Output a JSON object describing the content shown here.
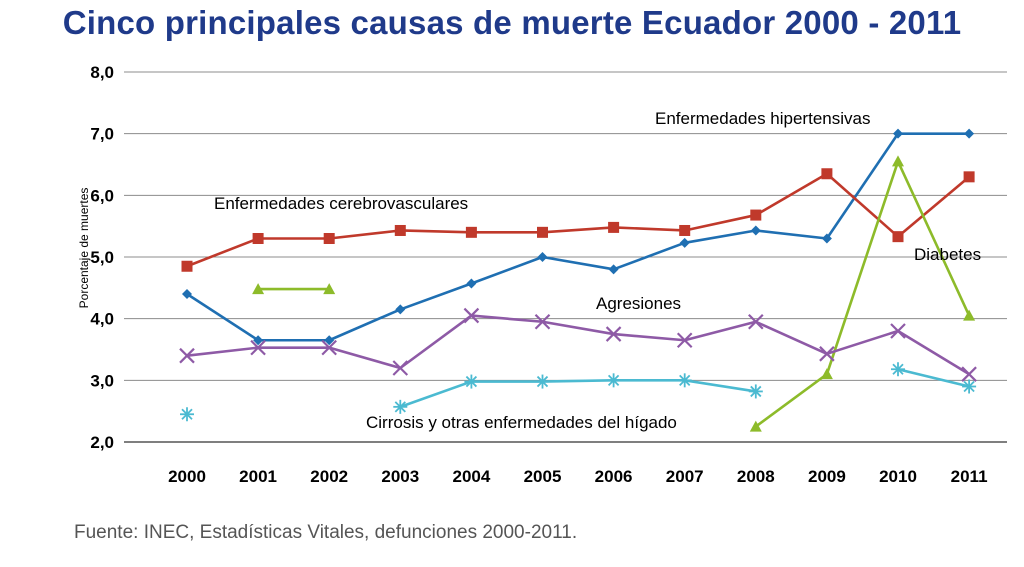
{
  "title": "Cinco principales causas de muerte Ecuador 2000 - 2011",
  "source": "Fuente: INEC, Estadísticas Vitales, defunciones 2000-2011.",
  "chart_data": {
    "type": "line",
    "title": "Cinco principales causas de muerte Ecuador 2000 - 2011",
    "xlabel": "",
    "ylabel": "Porcentaje de muertes",
    "ylim": [
      2.0,
      8.0
    ],
    "yticks": [
      "2,0",
      "3,0",
      "4,0",
      "5,0",
      "6,0",
      "7,0",
      "8,0"
    ],
    "categories": [
      "2000",
      "2001",
      "2002",
      "2003",
      "2004",
      "2005",
      "2006",
      "2007",
      "2008",
      "2009",
      "2010",
      "2011"
    ],
    "grid": true,
    "series": [
      {
        "name": "Enfermedades hipertensivas",
        "color": "#1f6fb2",
        "marker": "diamond",
        "values": [
          4.4,
          3.65,
          3.65,
          4.15,
          4.57,
          5.0,
          4.8,
          5.23,
          5.43,
          5.3,
          7.0,
          7.0
        ]
      },
      {
        "name": "Enfermedades cerebrovasculares",
        "color": "#c0392b",
        "marker": "square",
        "values": [
          4.85,
          5.3,
          5.3,
          5.43,
          5.4,
          5.4,
          5.48,
          5.43,
          5.68,
          6.35,
          5.33,
          6.3
        ]
      },
      {
        "name": "Diabetes",
        "color": "#8dbb2a",
        "marker": "triangle",
        "values": [
          null,
          4.48,
          4.48,
          null,
          null,
          null,
          null,
          null,
          2.25,
          3.1,
          6.55,
          4.05
        ]
      },
      {
        "name": "Agresiones",
        "color": "#8e5aa6",
        "marker": "x",
        "values": [
          3.4,
          3.53,
          3.53,
          3.2,
          4.05,
          3.95,
          3.75,
          3.65,
          3.95,
          3.43,
          3.8,
          3.1
        ]
      },
      {
        "name": "Cirrosis y otras enfermedades del hígado",
        "color": "#4bbad1",
        "marker": "asterisk",
        "values": [
          2.45,
          null,
          null,
          2.57,
          2.98,
          2.98,
          3.0,
          3.0,
          2.82,
          null,
          3.18,
          2.9
        ]
      }
    ],
    "annotations": [
      "Enfermedades hipertensivas",
      "Enfermedades cerebrovasculares",
      "Diabetes",
      "Agresiones",
      "Cirrosis y otras enfermedades del hígado"
    ]
  }
}
